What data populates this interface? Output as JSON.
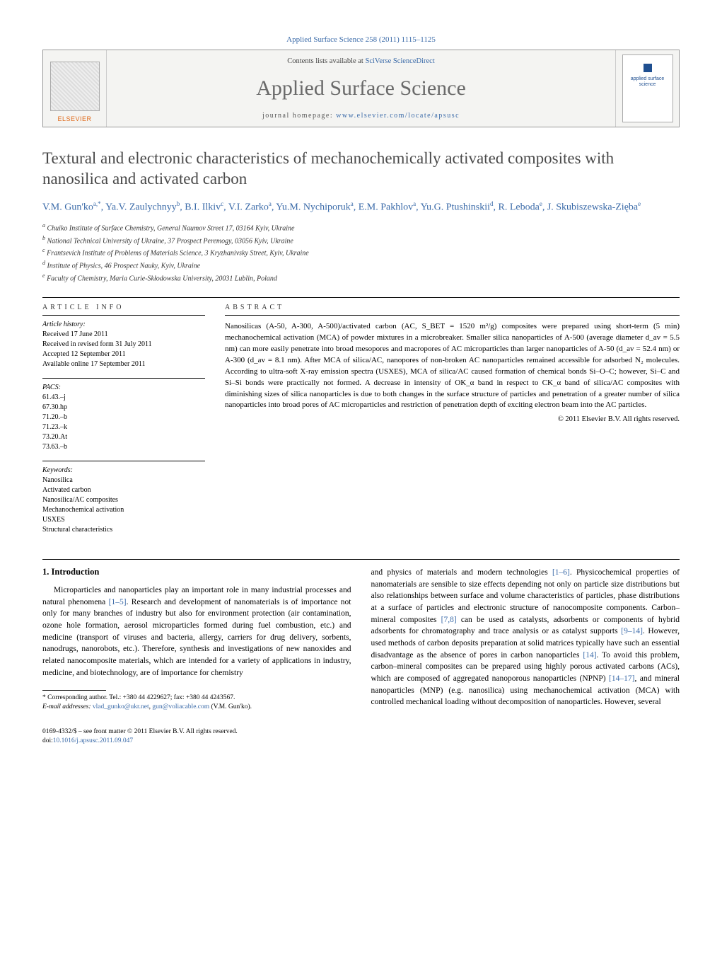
{
  "journal_header": "Applied Surface Science 258 (2011) 1115–1125",
  "banner": {
    "publisher": "ELSEVIER",
    "contents_prefix": "Contents lists available at ",
    "contents_link": "SciVerse ScienceDirect",
    "journal_title": "Applied Surface Science",
    "homepage_prefix": "journal homepage: ",
    "homepage_url": "www.elsevier.com/locate/apsusc",
    "cover_text": "applied\nsurface science"
  },
  "title": "Textural and electronic characteristics of mechanochemically activated composites with nanosilica and activated carbon",
  "authors_html": "V.M. Gun'ko<sup>a,*</sup>, Ya.V. Zaulychnyy<sup>b</sup>, B.I. Ilkiv<sup>c</sup>, V.I. Zarko<sup>a</sup>, Yu.M. Nychiporuk<sup>a</sup>, E.M. Pakhlov<sup>a</sup>, Yu.G. Ptushinskii<sup>d</sup>, R. Leboda<sup>e</sup>, J. Skubiszewska-Zięba<sup>e</sup>",
  "affiliations": [
    {
      "sup": "a",
      "text": "Chuiko Institute of Surface Chemistry, General Naumov Street 17, 03164 Kyiv, Ukraine"
    },
    {
      "sup": "b",
      "text": "National Technical University of Ukraine, 37 Prospect Peremogy, 03056 Kyiv, Ukraine"
    },
    {
      "sup": "c",
      "text": "Frantsevich Institute of Problems of Materials Science, 3 Kryzhanivsky Street, Kyiv, Ukraine"
    },
    {
      "sup": "d",
      "text": "Institute of Physics, 46 Prospect Nauky, Kyiv, Ukraine"
    },
    {
      "sup": "e",
      "text": "Faculty of Chemistry, Maria Curie-Skłodowska University, 20031 Lublin, Poland"
    }
  ],
  "article_info": {
    "heading": "article info",
    "history_label": "Article history:",
    "history": [
      "Received 17 June 2011",
      "Received in revised form 31 July 2011",
      "Accepted 12 September 2011",
      "Available online 17 September 2011"
    ],
    "pacs_label": "PACS:",
    "pacs": [
      "61.43.–j",
      "67.30.hp",
      "71.20.–b",
      "71.23.–k",
      "73.20.At",
      "73.63.–b"
    ],
    "keywords_label": "Keywords:",
    "keywords": [
      "Nanosilica",
      "Activated carbon",
      "Nanosilica/AC composites",
      "Mechanochemical activation",
      "USXES",
      "Structural characteristics"
    ]
  },
  "abstract": {
    "heading": "abstract",
    "text": "Nanosilicas (A-50, A-300, A-500)/activated carbon (AC, S_BET = 1520 m²/g) composites were prepared using short-term (5 min) mechanochemical activation (MCA) of powder mixtures in a microbreaker. Smaller silica nanoparticles of A-500 (average diameter d_av = 5.5 nm) can more easily penetrate into broad mesopores and macropores of AC microparticles than larger nanoparticles of A-50 (d_av = 52.4 nm) or A-300 (d_av = 8.1 nm). After MCA of silica/AC, nanopores of non-broken AC nanoparticles remained accessible for adsorbed N₂ molecules. According to ultra-soft X-ray emission spectra (USXES), MCA of silica/AC caused formation of chemical bonds Si–O–C; however, Si–C and Si–Si bonds were practically not formed. A decrease in intensity of OK_α band in respect to CK_α band of silica/AC composites with diminishing sizes of silica nanoparticles is due to both changes in the surface structure of particles and penetration of a greater number of silica nanoparticles into broad pores of AC microparticles and restriction of penetration depth of exciting electron beam into the AC particles.",
    "copyright": "© 2011 Elsevier B.V. All rights reserved."
  },
  "body": {
    "section_heading": "1.  Introduction",
    "col1": "Microparticles and nanoparticles play an important role in many industrial processes and natural phenomena [1–5]. Research and development of nanomaterials is of importance not only for many branches of industry but also for environment protection (air contamination, ozone hole formation, aerosol microparticles formed during fuel combustion, etc.) and medicine (transport of viruses and bacteria, allergy, carriers for drug delivery, sorbents, nanodrugs, nanorobots, etc.). Therefore, synthesis and investigations of new nanoxides and related nanocomposite materials, which are intended for a variety of applications in industry, medicine, and biotechnology, are of importance for chemistry",
    "col2": "and physics of materials and modern technologies [1–6]. Physicochemical properties of nanomaterials are sensible to size effects depending not only on particle size distributions but also relationships between surface and volume characteristics of particles, phase distributions at a surface of particles and electronic structure of nanocomposite components. Carbon–mineral composites [7,8] can be used as catalysts, adsorbents or components of hybrid adsorbents for chromatography and trace analysis or as catalyst supports [9–14]. However, used methods of carbon deposits preparation at solid matrices typically have such an essential disadvantage as the absence of pores in carbon nanoparticles [14]. To avoid this problem, carbon–mineral composites can be prepared using highly porous activated carbons (ACs), which are composed of aggregated nanoporous nanoparticles (NPNP) [14–17], and mineral nanoparticles (MNP) (e.g. nanosilica) using mechanochemical activation (MCA) with controlled mechanical loading without decomposition of nanoparticles. However, several"
  },
  "footnote": {
    "corr": "* Corresponding author. Tel.: +380 44 4229627; fax: +380 44 4243567.",
    "email_label": "E-mail addresses:",
    "email1": "vlad_gunko@ukr.net",
    "email_sep": ", ",
    "email2": "gun@voliacable.com",
    "email_tail": " (V.M. Gun'ko)."
  },
  "bottom": {
    "issn_line": "0169-4332/$ – see front matter © 2011 Elsevier B.V. All rights reserved.",
    "doi_prefix": "doi:",
    "doi": "10.1016/j.apsusc.2011.09.047"
  },
  "refs": {
    "r1": "[1–5]",
    "r2": "[1–6]",
    "r3": "[7,8]",
    "r4": "[9–14]",
    "r5": "[14]",
    "r6": "[14–17]"
  }
}
